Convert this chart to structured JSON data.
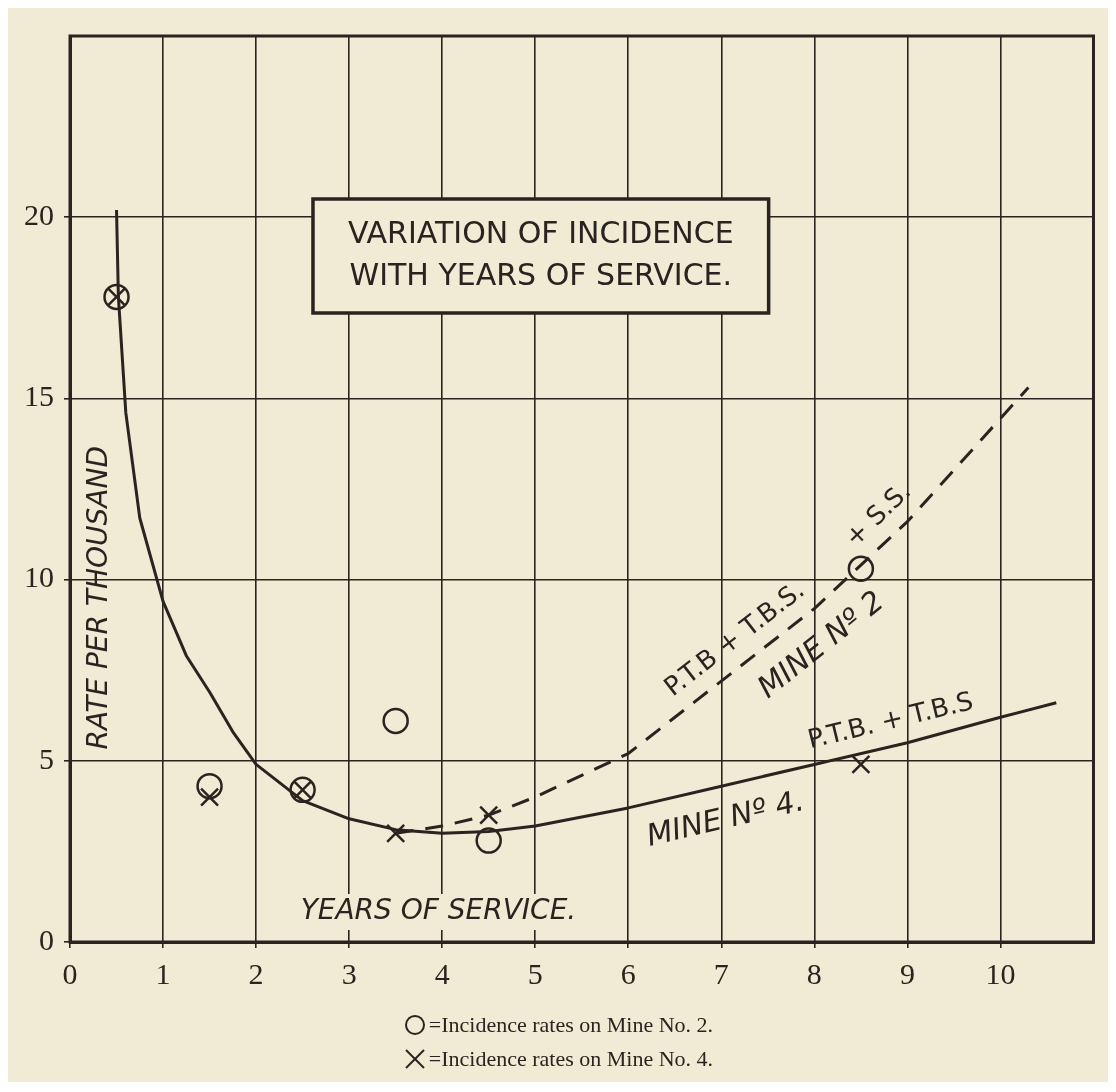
{
  "chart_data": {
    "type": "scatter",
    "title": "VARIATION OF INCIDENCE WITH YEARS OF SERVICE.",
    "xlabel": "YEARS OF SERVICE.",
    "ylabel": "RATE PER THOUSAND",
    "xlim": [
      0,
      11
    ],
    "xticks": [
      0,
      1,
      2,
      3,
      4,
      5,
      6,
      7,
      8,
      9,
      10
    ],
    "ylim": [
      0,
      25
    ],
    "yticks": [
      0,
      5,
      10,
      15,
      20
    ],
    "grid": true,
    "legend": "bottom",
    "series": [
      {
        "name": "=Incidence rates on Mine No. 2.",
        "type": "scatter",
        "marker": "circle",
        "color": "#2a2420",
        "x": [
          0.5,
          1.5,
          2.5,
          3.5,
          4.5,
          8.5
        ],
        "values": [
          17.8,
          4.3,
          4.2,
          6.1,
          2.8,
          10.3
        ]
      },
      {
        "name": "=Incidence rates on Mine No. 4.",
        "type": "scatter",
        "marker": "cross",
        "color": "#2a2420",
        "x": [
          0.5,
          1.5,
          2.5,
          3.5,
          4.5,
          8.5
        ],
        "values": [
          17.8,
          4.0,
          4.2,
          3.0,
          3.5,
          4.9
        ]
      },
      {
        "name": "MINE Nº 4.",
        "type": "line",
        "marker": "none",
        "line_style": "solid",
        "color": "#2a2420",
        "x": [
          0.5,
          0.52,
          0.6,
          0.75,
          1.0,
          1.25,
          1.5,
          1.75,
          2.0,
          2.5,
          3.0,
          3.5,
          4.0,
          4.5,
          5.0,
          6.0,
          7.0,
          8.0,
          9.0,
          10.0,
          10.6
        ],
        "values": [
          20.2,
          17.8,
          14.6,
          11.7,
          9.4,
          7.9,
          6.9,
          5.8,
          4.9,
          3.9,
          3.4,
          3.1,
          3.0,
          3.05,
          3.2,
          3.7,
          4.3,
          4.9,
          5.5,
          6.2,
          6.6
        ]
      },
      {
        "name": "MINE Nº 2",
        "type": "line",
        "marker": "none",
        "line_style": "dashed",
        "color": "#2a2420",
        "x": [
          3.5,
          4.0,
          4.5,
          5.0,
          5.5,
          6.0,
          7.0,
          8.0,
          9.0,
          10.3
        ],
        "values": [
          3.0,
          3.2,
          3.5,
          4.0,
          4.6,
          5.2,
          7.2,
          9.2,
          11.6,
          15.3
        ]
      }
    ],
    "annotations": [
      "P.T.B + T.B.S.",
      "+ S.S.",
      "P.T.B. + T.B.S"
    ]
  }
}
